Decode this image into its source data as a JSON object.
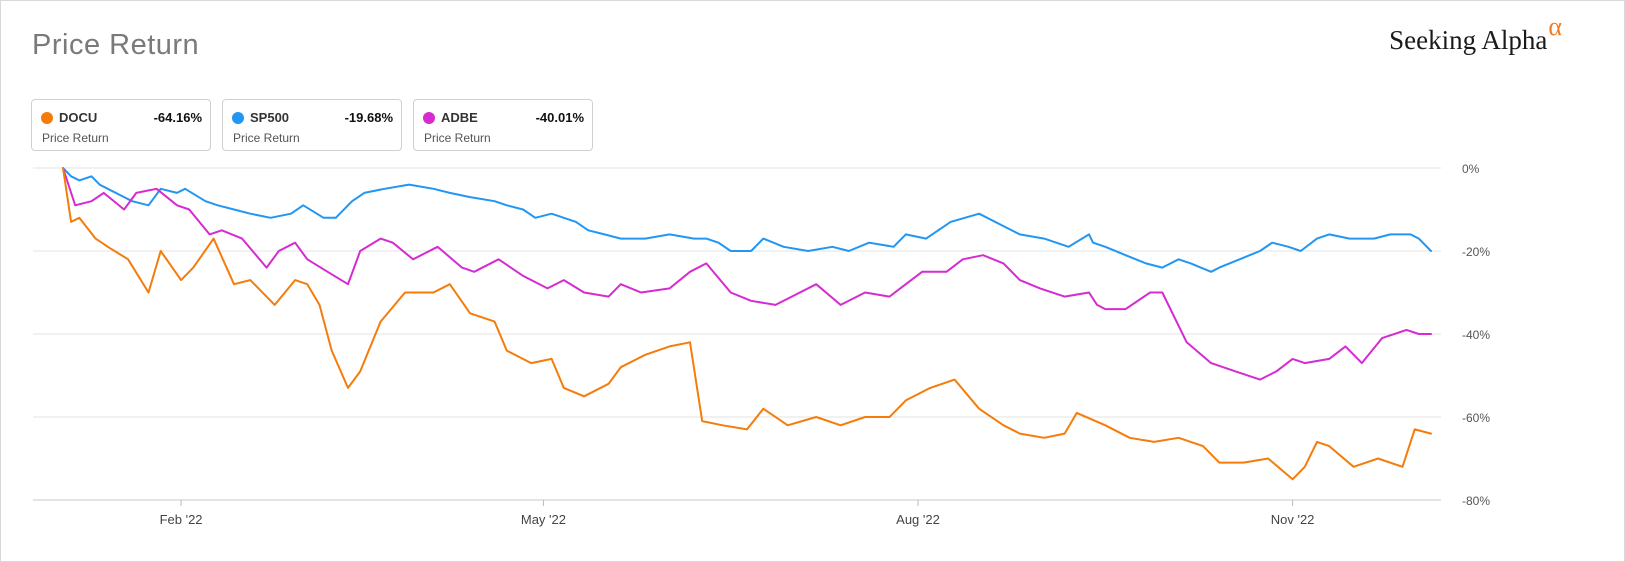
{
  "header": {
    "title": "Price Return",
    "logo_text": "Seeking Alpha",
    "logo_symbol": "α"
  },
  "legend": [
    {
      "ticker": "DOCU",
      "value": "-64.16%",
      "sub": "Price Return",
      "color": "#f57c0a"
    },
    {
      "ticker": "SP500",
      "value": "-19.68%",
      "sub": "Price Return",
      "color": "#2196f3"
    },
    {
      "ticker": "ADBE",
      "value": "-40.01%",
      "sub": "Price Return",
      "color": "#d52bd1"
    }
  ],
  "chart_data": {
    "type": "line",
    "title": "Price Return",
    "xlabel": "",
    "ylabel": "",
    "x_range": [
      "2022-01-03",
      "2022-12-05"
    ],
    "ylim": [
      -80,
      0
    ],
    "y_ticks": [
      0,
      -20,
      -40,
      -60,
      -80
    ],
    "y_tick_labels": [
      "0%",
      "-20%",
      "-40%",
      "-60%",
      "-80%"
    ],
    "x_ticks": [
      "2022-02-01",
      "2022-05-01",
      "2022-08-01",
      "2022-11-01"
    ],
    "x_tick_labels": [
      "Feb '22",
      "May '22",
      "Aug '22",
      "Nov '22"
    ],
    "grid": true,
    "series": [
      {
        "name": "SP500",
        "color": "#2196f3",
        "x": [
          "2022-01-03",
          "2022-01-05",
          "2022-01-07",
          "2022-01-10",
          "2022-01-12",
          "2022-01-14",
          "2022-01-18",
          "2022-01-20",
          "2022-01-24",
          "2022-01-27",
          "2022-01-31",
          "2022-02-02",
          "2022-02-07",
          "2022-02-10",
          "2022-02-14",
          "2022-02-18",
          "2022-02-23",
          "2022-02-28",
          "2022-03-03",
          "2022-03-08",
          "2022-03-11",
          "2022-03-15",
          "2022-03-18",
          "2022-03-23",
          "2022-03-29",
          "2022-04-04",
          "2022-04-08",
          "2022-04-13",
          "2022-04-19",
          "2022-04-22",
          "2022-04-26",
          "2022-04-29",
          "2022-05-03",
          "2022-05-06",
          "2022-05-09",
          "2022-05-12",
          "2022-05-16",
          "2022-05-20",
          "2022-05-26",
          "2022-06-01",
          "2022-06-07",
          "2022-06-10",
          "2022-06-13",
          "2022-06-16",
          "2022-06-21",
          "2022-06-24",
          "2022-06-29",
          "2022-07-05",
          "2022-07-11",
          "2022-07-15",
          "2022-07-20",
          "2022-07-26",
          "2022-07-29",
          "2022-08-03",
          "2022-08-09",
          "2022-08-16",
          "2022-08-22",
          "2022-08-26",
          "2022-09-01",
          "2022-09-07",
          "2022-09-12",
          "2022-09-13",
          "2022-09-16",
          "2022-09-21",
          "2022-09-26",
          "2022-09-30",
          "2022-10-04",
          "2022-10-07",
          "2022-10-12",
          "2022-10-14",
          "2022-10-19",
          "2022-10-24",
          "2022-10-27",
          "2022-10-31",
          "2022-11-03",
          "2022-11-07",
          "2022-11-10",
          "2022-11-15",
          "2022-11-21",
          "2022-11-25",
          "2022-11-30",
          "2022-12-02",
          "2022-12-05"
        ],
        "values": [
          0,
          -2,
          -3,
          -2,
          -4,
          -5,
          -7,
          -8,
          -9,
          -5,
          -6,
          -5,
          -8,
          -9,
          -10,
          -11,
          -12,
          -11,
          -9,
          -12,
          -12,
          -8,
          -6,
          -5,
          -4,
          -5,
          -6,
          -7,
          -8,
          -9,
          -10,
          -12,
          -11,
          -12,
          -13,
          -15,
          -16,
          -17,
          -17,
          -16,
          -17,
          -17,
          -18,
          -20,
          -20,
          -17,
          -19,
          -20,
          -19,
          -20,
          -18,
          -19,
          -16,
          -17,
          -13,
          -11,
          -14,
          -16,
          -17,
          -19,
          -16,
          -18,
          -19,
          -21,
          -23,
          -24,
          -22,
          -23,
          -25,
          -24,
          -22,
          -20,
          -18,
          -19,
          -20,
          -17,
          -16,
          -17,
          -17,
          -16,
          -16,
          -17,
          -20
        ]
      },
      {
        "name": "ADBE",
        "color": "#d52bd1",
        "x": [
          "2022-01-03",
          "2022-01-06",
          "2022-01-10",
          "2022-01-13",
          "2022-01-18",
          "2022-01-21",
          "2022-01-26",
          "2022-01-31",
          "2022-02-03",
          "2022-02-08",
          "2022-02-11",
          "2022-02-16",
          "2022-02-22",
          "2022-02-25",
          "2022-03-01",
          "2022-03-04",
          "2022-03-09",
          "2022-03-14",
          "2022-03-17",
          "2022-03-22",
          "2022-03-25",
          "2022-03-30",
          "2022-04-05",
          "2022-04-11",
          "2022-04-14",
          "2022-04-20",
          "2022-04-26",
          "2022-05-02",
          "2022-05-06",
          "2022-05-11",
          "2022-05-17",
          "2022-05-20",
          "2022-05-25",
          "2022-06-01",
          "2022-06-06",
          "2022-06-10",
          "2022-06-16",
          "2022-06-21",
          "2022-06-27",
          "2022-07-01",
          "2022-07-07",
          "2022-07-13",
          "2022-07-19",
          "2022-07-25",
          "2022-07-29",
          "2022-08-02",
          "2022-08-08",
          "2022-08-12",
          "2022-08-17",
          "2022-08-22",
          "2022-08-26",
          "2022-08-31",
          "2022-09-06",
          "2022-09-12",
          "2022-09-14",
          "2022-09-16",
          "2022-09-21",
          "2022-09-27",
          "2022-09-30",
          "2022-10-06",
          "2022-10-12",
          "2022-10-18",
          "2022-10-24",
          "2022-10-28",
          "2022-11-01",
          "2022-11-04",
          "2022-11-10",
          "2022-11-14",
          "2022-11-18",
          "2022-11-23",
          "2022-11-29",
          "2022-12-02",
          "2022-12-05"
        ],
        "values": [
          0,
          -9,
          -8,
          -6,
          -10,
          -6,
          -5,
          -9,
          -10,
          -16,
          -15,
          -17,
          -24,
          -20,
          -18,
          -22,
          -25,
          -28,
          -20,
          -17,
          -18,
          -22,
          -19,
          -24,
          -25,
          -22,
          -26,
          -29,
          -27,
          -30,
          -31,
          -28,
          -30,
          -29,
          -25,
          -23,
          -30,
          -32,
          -33,
          -31,
          -28,
          -33,
          -30,
          -31,
          -28,
          -25,
          -25,
          -22,
          -21,
          -23,
          -27,
          -29,
          -31,
          -30,
          -33,
          -34,
          -34,
          -30,
          -30,
          -42,
          -47,
          -49,
          -51,
          -49,
          -46,
          -47,
          -46,
          -43,
          -47,
          -41,
          -39,
          -40,
          -40
        ]
      },
      {
        "name": "DOCU",
        "color": "#f57c0a",
        "x": [
          "2022-01-03",
          "2022-01-05",
          "2022-01-07",
          "2022-01-11",
          "2022-01-14",
          "2022-01-19",
          "2022-01-24",
          "2022-01-27",
          "2022-02-01",
          "2022-02-04",
          "2022-02-09",
          "2022-02-14",
          "2022-02-18",
          "2022-02-24",
          "2022-03-01",
          "2022-03-04",
          "2022-03-07",
          "2022-03-10",
          "2022-03-14",
          "2022-03-17",
          "2022-03-22",
          "2022-03-28",
          "2022-04-04",
          "2022-04-08",
          "2022-04-13",
          "2022-04-19",
          "2022-04-22",
          "2022-04-28",
          "2022-05-03",
          "2022-05-06",
          "2022-05-11",
          "2022-05-17",
          "2022-05-20",
          "2022-05-26",
          "2022-06-01",
          "2022-06-06",
          "2022-06-09",
          "2022-06-14",
          "2022-06-20",
          "2022-06-24",
          "2022-06-30",
          "2022-07-07",
          "2022-07-13",
          "2022-07-19",
          "2022-07-25",
          "2022-07-29",
          "2022-08-04",
          "2022-08-10",
          "2022-08-16",
          "2022-08-22",
          "2022-08-26",
          "2022-09-01",
          "2022-09-06",
          "2022-09-09",
          "2022-09-16",
          "2022-09-22",
          "2022-09-28",
          "2022-10-04",
          "2022-10-10",
          "2022-10-14",
          "2022-10-20",
          "2022-10-26",
          "2022-11-01",
          "2022-11-04",
          "2022-11-07",
          "2022-11-10",
          "2022-11-16",
          "2022-11-22",
          "2022-11-28",
          "2022-12-01",
          "2022-12-05"
        ],
        "values": [
          0,
          -13,
          -12,
          -17,
          -19,
          -22,
          -30,
          -20,
          -27,
          -24,
          -17,
          -28,
          -27,
          -33,
          -27,
          -28,
          -33,
          -44,
          -53,
          -49,
          -37,
          -30,
          -30,
          -28,
          -35,
          -37,
          -44,
          -47,
          -46,
          -53,
          -55,
          -52,
          -48,
          -45,
          -43,
          -42,
          -61,
          -62,
          -63,
          -58,
          -62,
          -60,
          -62,
          -60,
          -60,
          -56,
          -53,
          -51,
          -58,
          -62,
          -64,
          -65,
          -64,
          -59,
          -62,
          -65,
          -66,
          -65,
          -67,
          -71,
          -71,
          -70,
          -75,
          -72,
          -66,
          -67,
          -72,
          -70,
          -72,
          -63,
          -64
        ]
      }
    ]
  }
}
